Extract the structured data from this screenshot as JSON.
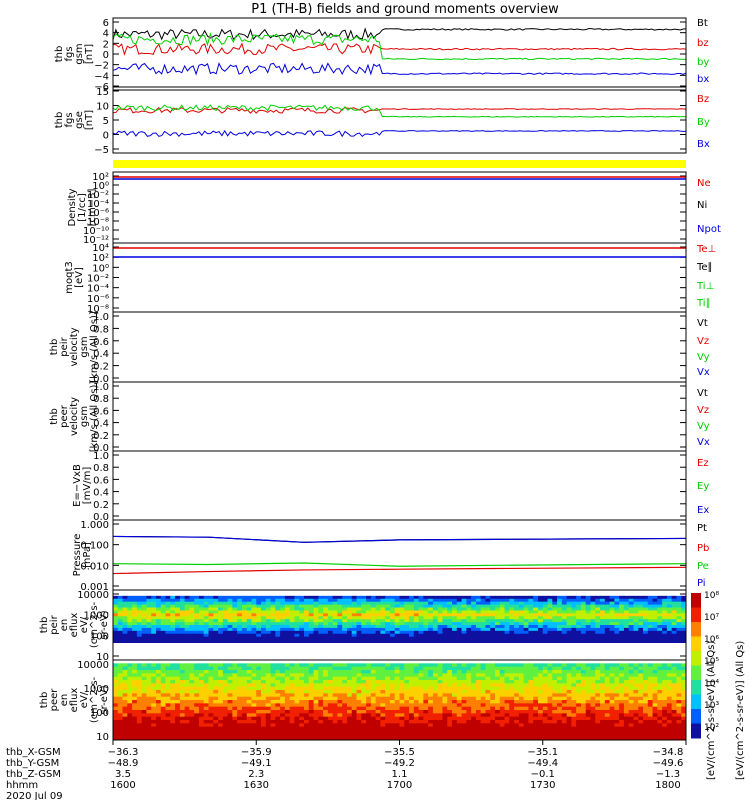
{
  "title": "P1 (TH-B) fields and ground moments overview",
  "colors": {
    "black": "#000000",
    "red": "#e00000",
    "green": "#00d000",
    "blue": "#0000e0",
    "yellow": "#ffff00"
  },
  "chart_data": [
    {
      "type": "line",
      "panel": "fgs_gsm",
      "ylabel": [
        "thb",
        "fgs",
        "gsm",
        "[nT]"
      ],
      "yticks": [
        "6",
        "4",
        "2",
        "0",
        "−2",
        "−4",
        "−6"
      ],
      "ylim": [
        -6.5,
        6.5
      ],
      "series": [
        {
          "name": "Bt",
          "color": "#000000"
        },
        {
          "name": "bz",
          "color": "#e00000"
        },
        {
          "name": "by",
          "color": "#00d000"
        },
        {
          "name": "bx",
          "color": "#0000e0"
        }
      ]
    },
    {
      "type": "line",
      "panel": "fgs_gse",
      "ylabel": [
        "thb",
        "fgs",
        "gse",
        "[nT]"
      ],
      "yticks": [
        "15",
        "10",
        "5",
        "0",
        "−5"
      ],
      "ylim": [
        -7,
        15.5
      ],
      "series": [
        {
          "name": "Bz",
          "color": "#e00000"
        },
        {
          "name": "By",
          "color": "#00d000"
        },
        {
          "name": "Bx",
          "color": "#0000e0"
        }
      ]
    },
    {
      "type": "line",
      "panel": "density",
      "ylabel": [
        "Density",
        "[1/cc]",
        "[cm−3]"
      ],
      "yticks": [
        "10²",
        "10⁰",
        "10⁻²",
        "10⁻⁴",
        "10⁻⁶",
        "10⁻⁸",
        "10⁻¹⁰",
        "10⁻¹²"
      ],
      "series": [
        {
          "name": "Ne",
          "color": "#e00000"
        },
        {
          "name": "Ni",
          "color": "#000000"
        },
        {
          "name": "Npot",
          "color": "#0000e0"
        }
      ]
    },
    {
      "type": "line",
      "panel": "temperature",
      "ylabel": [
        "moqt3",
        "[eV]"
      ],
      "yticks": [
        "10⁴",
        "10²",
        "10⁰",
        "10⁻²",
        "10⁻⁴",
        "10⁻⁶",
        "10⁻⁸"
      ],
      "series": [
        {
          "name": "Te⊥",
          "color": "#e00000"
        },
        {
          "name": "Te∥",
          "color": "#000000"
        },
        {
          "name": "Ti⊥",
          "color": "#00d000"
        },
        {
          "name": "Ti∥",
          "color": "#00d000"
        }
      ]
    },
    {
      "type": "line",
      "panel": "peir_velocity",
      "ylabel": [
        "thb",
        "peir",
        "velocity",
        "gsm",
        "[km/s (All Qs)]"
      ],
      "yticks": [
        "1.0",
        "0.8",
        "0.6",
        "0.4",
        "0.2",
        "0.0"
      ],
      "ylim": [
        0,
        1
      ],
      "series": [
        {
          "name": "Vt",
          "color": "#000000"
        },
        {
          "name": "Vz",
          "color": "#e00000"
        },
        {
          "name": "Vy",
          "color": "#00d000"
        },
        {
          "name": "Vx",
          "color": "#0000e0"
        }
      ]
    },
    {
      "type": "line",
      "panel": "peer_velocity",
      "ylabel": [
        "thb",
        "peer",
        "velocity",
        "gsm",
        "[km/s (All Qs)]"
      ],
      "yticks": [
        "1.0",
        "0.8",
        "0.6",
        "0.4",
        "0.2",
        "0.0"
      ],
      "ylim": [
        0,
        1
      ],
      "series": [
        {
          "name": "Vt",
          "color": "#000000"
        },
        {
          "name": "Vz",
          "color": "#e00000"
        },
        {
          "name": "Vy",
          "color": "#00d000"
        },
        {
          "name": "Vx",
          "color": "#0000e0"
        }
      ]
    },
    {
      "type": "line",
      "panel": "efield",
      "ylabel": [
        "E=−VxB",
        "[mV/m]"
      ],
      "yticks": [
        "1.0",
        "0.8",
        "0.6",
        "0.4",
        "0.2",
        "0.0"
      ],
      "ylim": [
        0,
        1
      ],
      "series": [
        {
          "name": "Ez",
          "color": "#e00000"
        },
        {
          "name": "Ey",
          "color": "#00d000"
        },
        {
          "name": "Ex",
          "color": "#0000e0"
        }
      ]
    },
    {
      "type": "line",
      "panel": "pressure",
      "ylabel": [
        "Pressure",
        "[nPa]"
      ],
      "yticks": [
        "1.000",
        "0.100",
        "0.010",
        "0.001"
      ],
      "yscale": "log",
      "series": [
        {
          "name": "Pt",
          "color": "#000000",
          "values": [
            0.25,
            0.23,
            0.13,
            0.17,
            0.18,
            0.19,
            0.2
          ]
        },
        {
          "name": "Pb",
          "color": "#e00000",
          "values": [
            0.004,
            0.005,
            0.006,
            0.0065,
            0.007,
            0.0075,
            0.008
          ]
        },
        {
          "name": "Pe",
          "color": "#00d000",
          "values": [
            0.012,
            0.011,
            0.013,
            0.009,
            0.01,
            0.011,
            0.012
          ]
        },
        {
          "name": "Pi",
          "color": "#0000e0",
          "values": [
            0.25,
            0.23,
            0.13,
            0.17,
            0.18,
            0.19,
            0.2
          ]
        }
      ]
    },
    {
      "type": "heatmap",
      "panel": "peir_spectrogram",
      "ylabel": [
        "thb",
        "peir",
        "en",
        "eflux",
        "eV/",
        "(cm^2-s-",
        "sr-eV)"
      ],
      "yticks": [
        "10000",
        "1000",
        "100",
        "10"
      ]
    },
    {
      "type": "heatmap",
      "panel": "peer_spectrogram",
      "ylabel": [
        "thb",
        "peer",
        "en",
        "eflux",
        "eV/",
        "(cm^2-s-",
        "sr-eV)"
      ],
      "yticks": [
        "10000",
        "1000",
        "100",
        "10"
      ]
    }
  ],
  "colorbar": {
    "ticks": [
      "10⁸",
      "10⁷",
      "10⁶",
      "10⁵",
      "10⁴",
      "10³",
      "10²"
    ],
    "label": "[eV/(cm^2-s-sr-eV)] (All Qs)",
    "label_back": "[eV/(cm^2-s-sr-eV)] (All Qs)"
  },
  "footer": {
    "rows": [
      {
        "name": "thb_X-GSM",
        "values": [
          "−36.3",
          "−35.9",
          "−35.5",
          "−35.1",
          "−34.8"
        ]
      },
      {
        "name": "thb_Y-GSM",
        "values": [
          "−48.9",
          "−49.1",
          "−49.2",
          "−49.4",
          "−49.6"
        ]
      },
      {
        "name": "thb_Z-GSM",
        "values": [
          "3.5",
          "2.3",
          "1.1",
          "−0.1",
          "−1.3"
        ]
      },
      {
        "name": "hhmm",
        "values": [
          "1600",
          "1630",
          "1700",
          "1730",
          "1800"
        ]
      }
    ],
    "date": "2020 Jul 09"
  }
}
